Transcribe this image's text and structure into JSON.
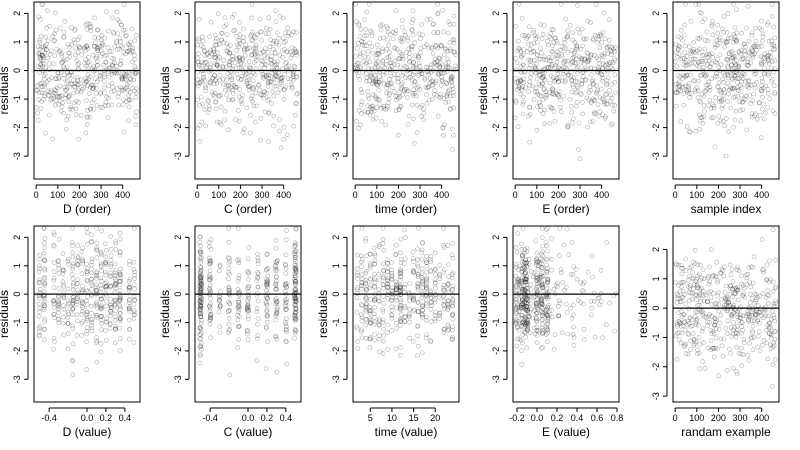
{
  "chart_data": [
    {
      "type": "scatter",
      "xlabel": "D (order)",
      "ylabel": "residuals",
      "xlim": [
        -10,
        480
      ],
      "ylim": [
        -3.8,
        2.4
      ],
      "xticks": [
        0,
        100,
        200,
        300,
        400
      ],
      "xtick_labels": [
        "0",
        "100",
        "200",
        "300",
        "400"
      ],
      "yticks": [
        -3,
        -2,
        -1,
        0,
        1,
        2
      ],
      "ytick_labels": [
        "-3",
        "-2",
        "-1",
        "0",
        "1",
        "2"
      ],
      "reference_line": 0,
      "n": 460,
      "seed": 11,
      "x_distribution": {
        "kind": "uniform",
        "min": 0,
        "max": 465
      }
    },
    {
      "type": "scatter",
      "xlabel": "C (order)",
      "ylabel": "residuals",
      "xlim": [
        -10,
        480
      ],
      "ylim": [
        -3.8,
        2.4
      ],
      "xticks": [
        0,
        100,
        200,
        300,
        400
      ],
      "xtick_labels": [
        "0",
        "100",
        "200",
        "300",
        "400"
      ],
      "yticks": [
        -3,
        -2,
        -1,
        0,
        1,
        2
      ],
      "ytick_labels": [
        "-3",
        "-2",
        "-1",
        "0",
        "1",
        "2"
      ],
      "reference_line": 0,
      "n": 460,
      "seed": 12,
      "x_distribution": {
        "kind": "uniform",
        "min": 0,
        "max": 465
      }
    },
    {
      "type": "scatter",
      "xlabel": "time (order)",
      "ylabel": "residuals",
      "xlim": [
        -10,
        480
      ],
      "ylim": [
        -3.8,
        2.4
      ],
      "xticks": [
        0,
        100,
        200,
        300,
        400
      ],
      "xtick_labels": [
        "0",
        "100",
        "200",
        "300",
        "400"
      ],
      "yticks": [
        -3,
        -2,
        -1,
        0,
        1,
        2
      ],
      "ytick_labels": [
        "-3",
        "-2",
        "-1",
        "0",
        "1",
        "2"
      ],
      "reference_line": 0,
      "n": 460,
      "seed": 13,
      "x_distribution": {
        "kind": "uniform",
        "min": 0,
        "max": 465
      }
    },
    {
      "type": "scatter",
      "xlabel": "E (order)",
      "ylabel": "residuals",
      "xlim": [
        -10,
        480
      ],
      "ylim": [
        -3.8,
        2.4
      ],
      "xticks": [
        0,
        100,
        200,
        300,
        400
      ],
      "xtick_labels": [
        "0",
        "100",
        "200",
        "300",
        "400"
      ],
      "yticks": [
        -3,
        -2,
        -1,
        0,
        1,
        2
      ],
      "ytick_labels": [
        "-3",
        "-2",
        "-1",
        "0",
        "1",
        "2"
      ],
      "reference_line": 0,
      "n": 460,
      "seed": 14,
      "x_distribution": {
        "kind": "uniform",
        "min": 0,
        "max": 465
      }
    },
    {
      "type": "scatter",
      "xlabel": "sample index",
      "ylabel": "residuals",
      "xlim": [
        -10,
        480
      ],
      "ylim": [
        -3.8,
        2.4
      ],
      "xticks": [
        0,
        100,
        200,
        300,
        400
      ],
      "xtick_labels": [
        "0",
        "100",
        "200",
        "300",
        "400"
      ],
      "yticks": [
        -3,
        -2,
        -1,
        0,
        1,
        2
      ],
      "ytick_labels": [
        "-3",
        "-2",
        "-1",
        "0",
        "1",
        "2"
      ],
      "reference_line": 0,
      "n": 460,
      "seed": 15,
      "x_distribution": {
        "kind": "uniform",
        "min": 0,
        "max": 465
      }
    },
    {
      "type": "scatter",
      "xlabel": "D (value)",
      "ylabel": "residuals",
      "xlim": [
        -0.56,
        0.56
      ],
      "ylim": [
        -3.8,
        2.4
      ],
      "xticks": [
        -0.4,
        0.0,
        0.2,
        0.4
      ],
      "xtick_labels": [
        "-0.4",
        "0.0",
        "0.2",
        "0.4"
      ],
      "yticks": [
        -3,
        -2,
        -1,
        0,
        1,
        2
      ],
      "ytick_labels": [
        "-3",
        "-2",
        "-1",
        "0",
        "1",
        "2"
      ],
      "reference_line": 0,
      "n": 460,
      "seed": 16,
      "x_distribution": {
        "kind": "discrete",
        "values": [
          -0.5,
          -0.45,
          -0.35,
          -0.3,
          -0.25,
          -0.2,
          -0.15,
          -0.1,
          -0.05,
          0.0,
          0.05,
          0.1,
          0.15,
          0.2,
          0.25,
          0.3,
          0.35,
          0.45,
          0.5
        ],
        "jitter": 0.006
      }
    },
    {
      "type": "scatter",
      "xlabel": "C (value)",
      "ylabel": "residuals",
      "xlim": [
        -0.56,
        0.56
      ],
      "ylim": [
        -3.8,
        2.4
      ],
      "xticks": [
        -0.4,
        0.0,
        0.2,
        0.4
      ],
      "xtick_labels": [
        "-0.4",
        "0.0",
        "0.2",
        "0.4"
      ],
      "yticks": [
        -3,
        -2,
        -1,
        0,
        1,
        2
      ],
      "ytick_labels": [
        "-3",
        "-2",
        "-1",
        "0",
        "1",
        "2"
      ],
      "reference_line": 0,
      "n": 460,
      "seed": 17,
      "x_distribution": {
        "kind": "discrete",
        "values": [
          -0.5,
          -0.5,
          -0.5,
          -0.4,
          -0.3,
          -0.2,
          -0.1,
          0.0,
          0.1,
          0.2,
          0.3,
          0.4,
          0.5,
          0.5,
          0.5
        ],
        "jitter": 0.01
      }
    },
    {
      "type": "scatter",
      "xlabel": "time (value)",
      "ylabel": "residuals",
      "xlim": [
        1,
        25.5
      ],
      "ylim": [
        -3.8,
        2.4
      ],
      "xticks": [
        5,
        10,
        15,
        20
      ],
      "xtick_labels": [
        "5",
        "10",
        "15",
        "20"
      ],
      "yticks": [
        -3,
        -2,
        -1,
        0,
        1,
        2
      ],
      "ytick_labels": [
        "-3",
        "-2",
        "-1",
        "0",
        "1",
        "2"
      ],
      "reference_line": 0,
      "n": 460,
      "seed": 18,
      "x_distribution": {
        "kind": "discrete",
        "values": [
          2,
          3,
          4,
          5,
          6,
          7,
          8,
          9,
          10,
          11,
          12,
          12,
          13,
          14,
          15,
          16,
          17,
          18,
          19,
          20,
          21,
          22,
          23,
          24
        ],
        "jitter": 0.12
      }
    },
    {
      "type": "scatter",
      "xlabel": "E (value)",
      "ylabel": "residuals",
      "xlim": [
        -0.24,
        0.82
      ],
      "ylim": [
        -3.8,
        2.4
      ],
      "xticks": [
        -0.2,
        0.0,
        0.2,
        0.4,
        0.6,
        0.8
      ],
      "xtick_labels": [
        "-0.2",
        "0.0",
        "0.2",
        "0.4",
        "0.6",
        "0.8"
      ],
      "yticks": [
        -3,
        -2,
        -1,
        0,
        1,
        2
      ],
      "ytick_labels": [
        "-3",
        "-2",
        "-1",
        "0",
        "1",
        "2"
      ],
      "reference_line": 0,
      "n": 460,
      "seed": 19,
      "x_distribution": {
        "kind": "skewed",
        "min": -0.21,
        "max": 0.8,
        "focus": [
          -0.15,
          -0.12,
          -0.1,
          0.0,
          0.05,
          0.1
        ],
        "jitter": 0.01
      }
    },
    {
      "type": "scatter",
      "xlabel": "randam example",
      "ylabel": "residuals",
      "xlim": [
        -10,
        480
      ],
      "ylim": [
        -3.2,
        2.8
      ],
      "xticks": [
        0,
        100,
        200,
        300,
        400
      ],
      "xtick_labels": [
        "0",
        "100",
        "200",
        "300",
        "400"
      ],
      "yticks": [
        -3,
        -2,
        -1,
        0,
        1,
        2
      ],
      "ytick_labels": [
        "-3",
        "-2",
        "-1",
        "0",
        "1",
        "2"
      ],
      "reference_line": 0,
      "n": 460,
      "seed": 20,
      "x_distribution": {
        "kind": "uniform",
        "min": 0,
        "max": 465
      }
    }
  ]
}
